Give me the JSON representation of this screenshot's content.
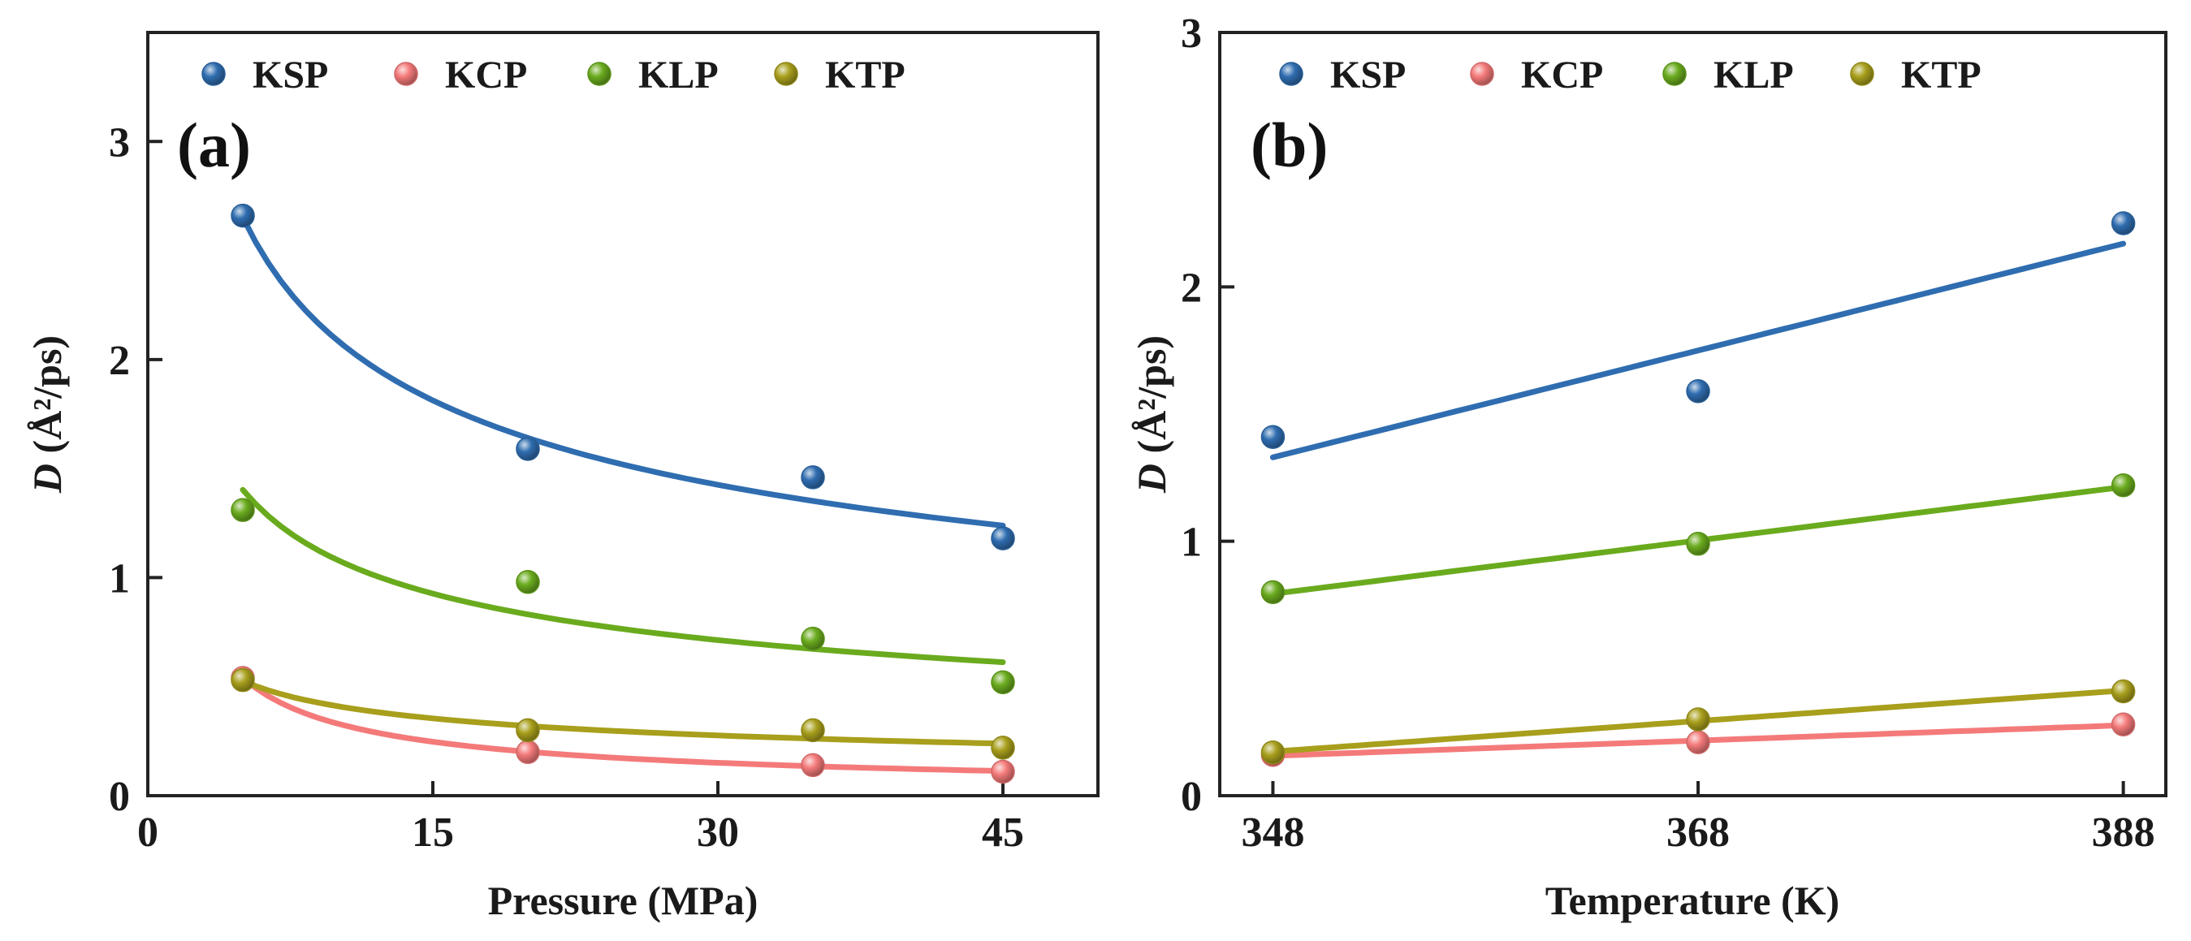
{
  "chart_data": [
    {
      "type": "scatter",
      "panel_label": "(a)",
      "xlabel": "Pressure (MPa)",
      "ylabel_italic": "D",
      "ylabel_rest": " (Å²/ps)",
      "xlim": [
        0,
        50
      ],
      "ylim": [
        0,
        3.5
      ],
      "xticks": [
        0,
        15,
        30,
        45
      ],
      "yticks": [
        0,
        1,
        2,
        3
      ],
      "grid": false,
      "legend_position": "top",
      "x": [
        5,
        20,
        35,
        45
      ],
      "series": [
        {
          "name": "KSP",
          "color": "#2f6db0",
          "points": [
            2.66,
            1.59,
            1.46,
            1.18
          ],
          "fit": "power",
          "fit_range": [
            5,
            45
          ]
        },
        {
          "name": "KCP",
          "color": "#f47a7a",
          "points": [
            0.54,
            0.2,
            0.14,
            0.11
          ],
          "fit": "power",
          "fit_range": [
            5,
            45
          ]
        },
        {
          "name": "KLP",
          "color": "#6aab1e",
          "points": [
            1.31,
            0.98,
            0.72,
            0.52
          ],
          "fit": "power",
          "fit_range": [
            5,
            45
          ]
        },
        {
          "name": "KTP",
          "color": "#a89f1c",
          "points": [
            0.53,
            0.3,
            0.3,
            0.22
          ],
          "fit": "power",
          "fit_range": [
            5,
            45
          ]
        }
      ]
    },
    {
      "type": "scatter",
      "panel_label": "(b)",
      "xlabel": "Temperature (K)",
      "ylabel_italic": "D",
      "ylabel_rest": " (Å²/ps)",
      "xlim": [
        345.5,
        390
      ],
      "ylim": [
        0,
        3
      ],
      "xticks": [
        348,
        368,
        388
      ],
      "yticks": [
        0,
        1,
        2,
        3
      ],
      "grid": false,
      "legend_position": "top",
      "x": [
        348,
        368,
        388
      ],
      "series": [
        {
          "name": "KSP",
          "color": "#2f6db0",
          "points": [
            1.41,
            1.59,
            2.25
          ],
          "fit": "linear",
          "fit_range": [
            348,
            388
          ]
        },
        {
          "name": "KCP",
          "color": "#f47a7a",
          "points": [
            0.16,
            0.21,
            0.28
          ],
          "fit": "linear",
          "fit_range": [
            348,
            388
          ]
        },
        {
          "name": "KLP",
          "color": "#6aab1e",
          "points": [
            0.8,
            0.99,
            1.22
          ],
          "fit": "linear",
          "fit_range": [
            348,
            388
          ]
        },
        {
          "name": "KTP",
          "color": "#a89f1c",
          "points": [
            0.17,
            0.3,
            0.41
          ],
          "fit": "linear",
          "fit_range": [
            348,
            388
          ]
        }
      ]
    }
  ]
}
